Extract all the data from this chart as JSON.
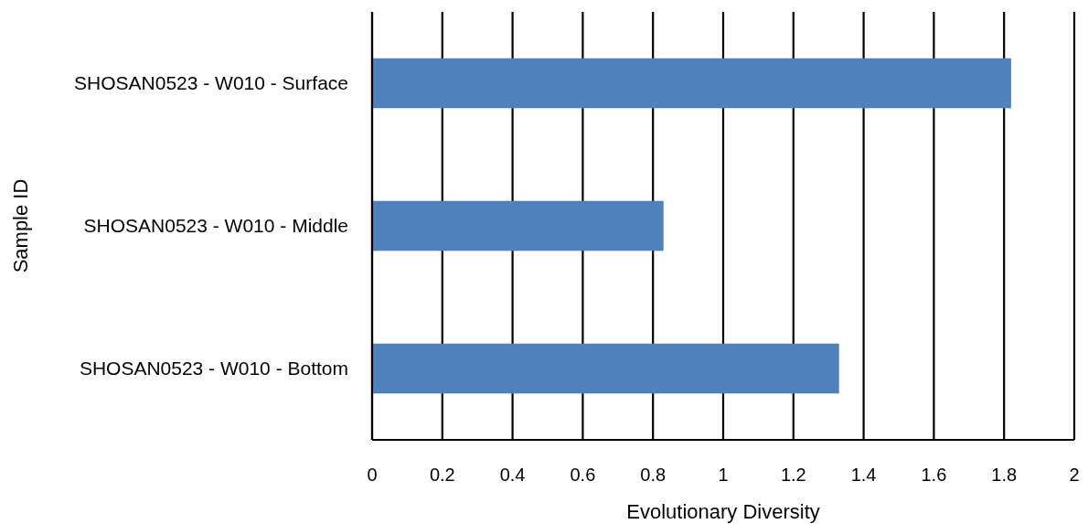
{
  "chart_data": {
    "type": "bar",
    "orientation": "horizontal",
    "xlabel": "Evolutionary Diversity",
    "ylabel": "Sample ID",
    "categories": [
      "SHOSAN0523 - W010 - Surface",
      "SHOSAN0523 - W010 - Middle",
      "SHOSAN0523 - W010 - Bottom"
    ],
    "values": [
      1.82,
      0.83,
      1.33
    ],
    "color": "#4f81bd",
    "xlim": [
      0,
      2
    ],
    "xticks": [
      0,
      0.2,
      0.4,
      0.6,
      0.8,
      1,
      1.2,
      1.4,
      1.6,
      1.8,
      2
    ],
    "grid": "x"
  }
}
